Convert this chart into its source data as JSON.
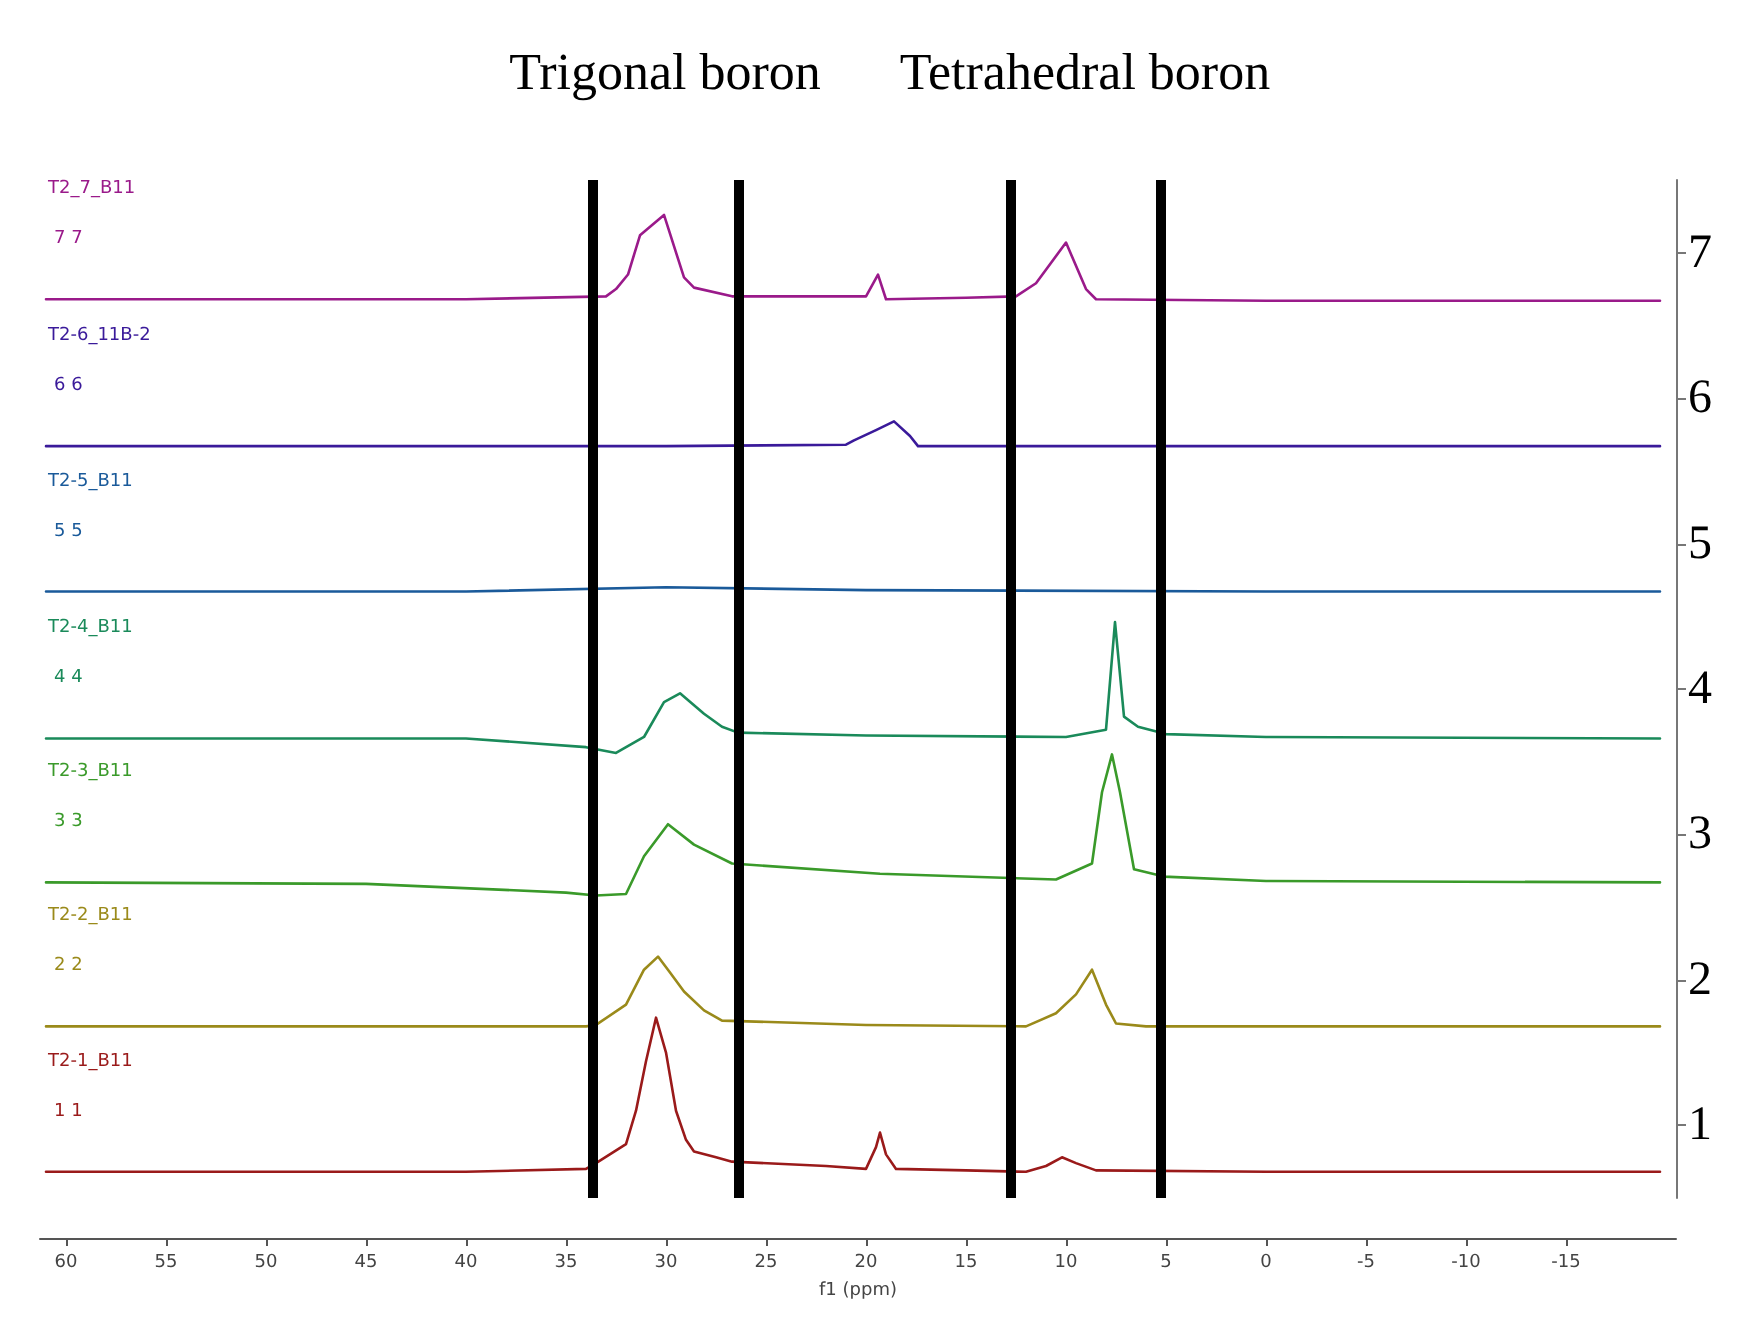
{
  "chart_data": {
    "type": "line",
    "xlabel": "f1 (ppm)",
    "xlim": [
      61.3,
      -20.5
    ],
    "xticks": [
      60,
      55,
      50,
      45,
      40,
      35,
      30,
      25,
      20,
      15,
      10,
      5,
      0,
      -5,
      -10,
      -15
    ],
    "ylim": [
      0.5,
      7.5
    ],
    "yticks": [
      1,
      2,
      3,
      4,
      5,
      6,
      7
    ],
    "grid": false,
    "legend": false,
    "marker": "none",
    "line_style": "solid",
    "series": [
      {
        "name": "T2-1_B11",
        "color": "#9a1a1a",
        "x": [
          61,
          50,
          40,
          34,
          33.5,
          32,
          31.5,
          31,
          30.5,
          30,
          29.5,
          29,
          28.6,
          27.5,
          26.7,
          22,
          20,
          19.5,
          19.3,
          19,
          18.5,
          15,
          12,
          11,
          10.2,
          9.5,
          8.5,
          0,
          -10,
          -19.7
        ],
        "values": [
          0.68,
          0.68,
          0.68,
          0.7,
          0.74,
          0.87,
          1.1,
          1.44,
          1.74,
          1.5,
          1.1,
          0.9,
          0.82,
          0.78,
          0.75,
          0.72,
          0.7,
          0.85,
          0.95,
          0.8,
          0.7,
          0.69,
          0.68,
          0.72,
          0.78,
          0.74,
          0.69,
          0.68,
          0.68,
          0.68
        ]
      },
      {
        "name": "T2-2_B11",
        "color": "#9a8a1a",
        "x": [
          61,
          40,
          34,
          33.5,
          32,
          31.1,
          30.4,
          29.8,
          29.1,
          28.1,
          27.2,
          20,
          12,
          10.5,
          9.5,
          8.7,
          8,
          7.5,
          6,
          0,
          -19.7
        ],
        "values": [
          1.68,
          1.68,
          1.68,
          1.69,
          1.83,
          2.07,
          2.16,
          2.05,
          1.92,
          1.79,
          1.72,
          1.69,
          1.68,
          1.77,
          1.9,
          2.07,
          1.83,
          1.7,
          1.68,
          1.68,
          1.68
        ]
      },
      {
        "name": "T2-3_B11",
        "color": "#3a9a2a",
        "x": [
          61,
          45,
          35,
          33.5,
          32,
          31.1,
          29.9,
          28.6,
          26.7,
          19.3,
          10.5,
          8.7,
          8.2,
          7.7,
          7.3,
          6.6,
          5.1,
          0,
          -19.7
        ],
        "values": [
          2.67,
          2.66,
          2.6,
          2.58,
          2.59,
          2.85,
          3.07,
          2.93,
          2.8,
          2.73,
          2.69,
          2.8,
          3.29,
          3.55,
          3.29,
          2.76,
          2.71,
          2.68,
          2.67
        ]
      },
      {
        "name": "T2-4_B11",
        "color": "#1a8a5a",
        "x": [
          61,
          40,
          34,
          32.5,
          31.1,
          30.1,
          29.3,
          28.1,
          27.2,
          26.4,
          20,
          10,
          8,
          7.55,
          7.1,
          6.4,
          5,
          0,
          -19.7
        ],
        "values": [
          3.66,
          3.66,
          3.6,
          3.56,
          3.67,
          3.91,
          3.97,
          3.83,
          3.74,
          3.7,
          3.68,
          3.67,
          3.72,
          4.46,
          3.81,
          3.74,
          3.69,
          3.67,
          3.66
        ]
      },
      {
        "name": "T2-5_B11",
        "color": "#1a5a9a",
        "x": [
          61,
          40,
          30,
          20,
          0,
          -19.7
        ],
        "values": [
          4.67,
          4.67,
          4.7,
          4.68,
          4.67,
          4.67
        ]
      },
      {
        "name": "T2-6_11B-2",
        "color": "#3a1a9a",
        "x": [
          61,
          30,
          21,
          20.6,
          19.5,
          18.6,
          17.8,
          17.4,
          10,
          0,
          -19.7
        ],
        "values": [
          5.67,
          5.67,
          5.68,
          5.71,
          5.78,
          5.84,
          5.74,
          5.67,
          5.67,
          5.67,
          5.67
        ]
      },
      {
        "name": "T2_7_B11",
        "color": "#9a1a8a",
        "x": [
          61,
          40,
          33,
          32.5,
          31.9,
          31.3,
          30.1,
          29.1,
          28.6,
          26.7,
          20,
          19.4,
          19,
          15,
          12.5,
          11.5,
          10,
          9,
          8.5,
          0,
          -19.7
        ],
        "values": [
          6.68,
          6.68,
          6.7,
          6.75,
          6.85,
          7.12,
          7.26,
          6.83,
          6.76,
          6.7,
          6.7,
          6.85,
          6.68,
          6.69,
          6.7,
          6.79,
          7.07,
          6.75,
          6.68,
          6.67,
          6.67
        ]
      }
    ],
    "ref_lines": [
      {
        "axis": "x",
        "value": 33.7,
        "color": "#000000"
      },
      {
        "axis": "x",
        "value": 26.4,
        "color": "#000000"
      },
      {
        "axis": "x",
        "value": 12.8,
        "color": "#000000"
      },
      {
        "axis": "x",
        "value": 5.3,
        "color": "#000000"
      }
    ],
    "annotations": [
      "Trigonal boron",
      "Tetrahedral boron",
      "1 1",
      "2 2",
      "3 3",
      "4 4",
      "5 5",
      "6 6",
      "7 7"
    ]
  }
}
